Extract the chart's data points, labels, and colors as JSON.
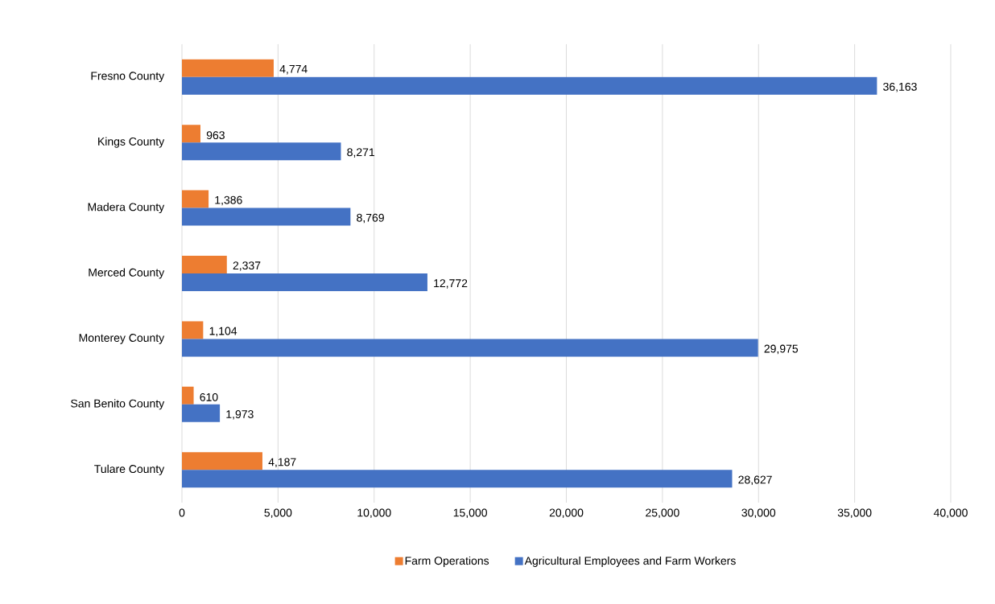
{
  "chart_data": {
    "type": "bar",
    "orientation": "horizontal",
    "categories": [
      "Fresno County",
      "Kings County",
      "Madera County",
      "Merced County",
      "Monterey County",
      "San Benito County",
      "Tulare County"
    ],
    "series": [
      {
        "name": "Farm Operations",
        "color": "#ed7d31",
        "values": [
          4774,
          963,
          1386,
          2337,
          1104,
          610,
          4187
        ],
        "value_labels": [
          "4,774",
          "963",
          "1,386",
          "2,337",
          "1,104",
          "610",
          "4,187"
        ]
      },
      {
        "name": "Agricultural Employees and Farm Workers",
        "color": "#4472c4",
        "values": [
          36163,
          8271,
          8769,
          12772,
          29975,
          1973,
          28627
        ],
        "value_labels": [
          "36,163",
          "8,271",
          "8,769",
          "12,772",
          "29,975",
          "1,973",
          "28,627"
        ]
      }
    ],
    "xlim": [
      0,
      40000
    ],
    "xticks": [
      0,
      {
        "value": 5000,
        "label": "5,000"
      },
      {
        "value": 10000,
        "label": "10,000"
      },
      {
        "value": 15000,
        "label": "15,000"
      },
      {
        "value": 20000,
        "label": "20,000"
      },
      {
        "value": 25000,
        "label": "25,000"
      },
      {
        "value": 30000,
        "label": "30,000"
      },
      {
        "value": 35000,
        "label": "35,000"
      },
      {
        "value": 40000,
        "label": "40,000"
      }
    ],
    "grid": "x",
    "legend": "bottom"
  }
}
